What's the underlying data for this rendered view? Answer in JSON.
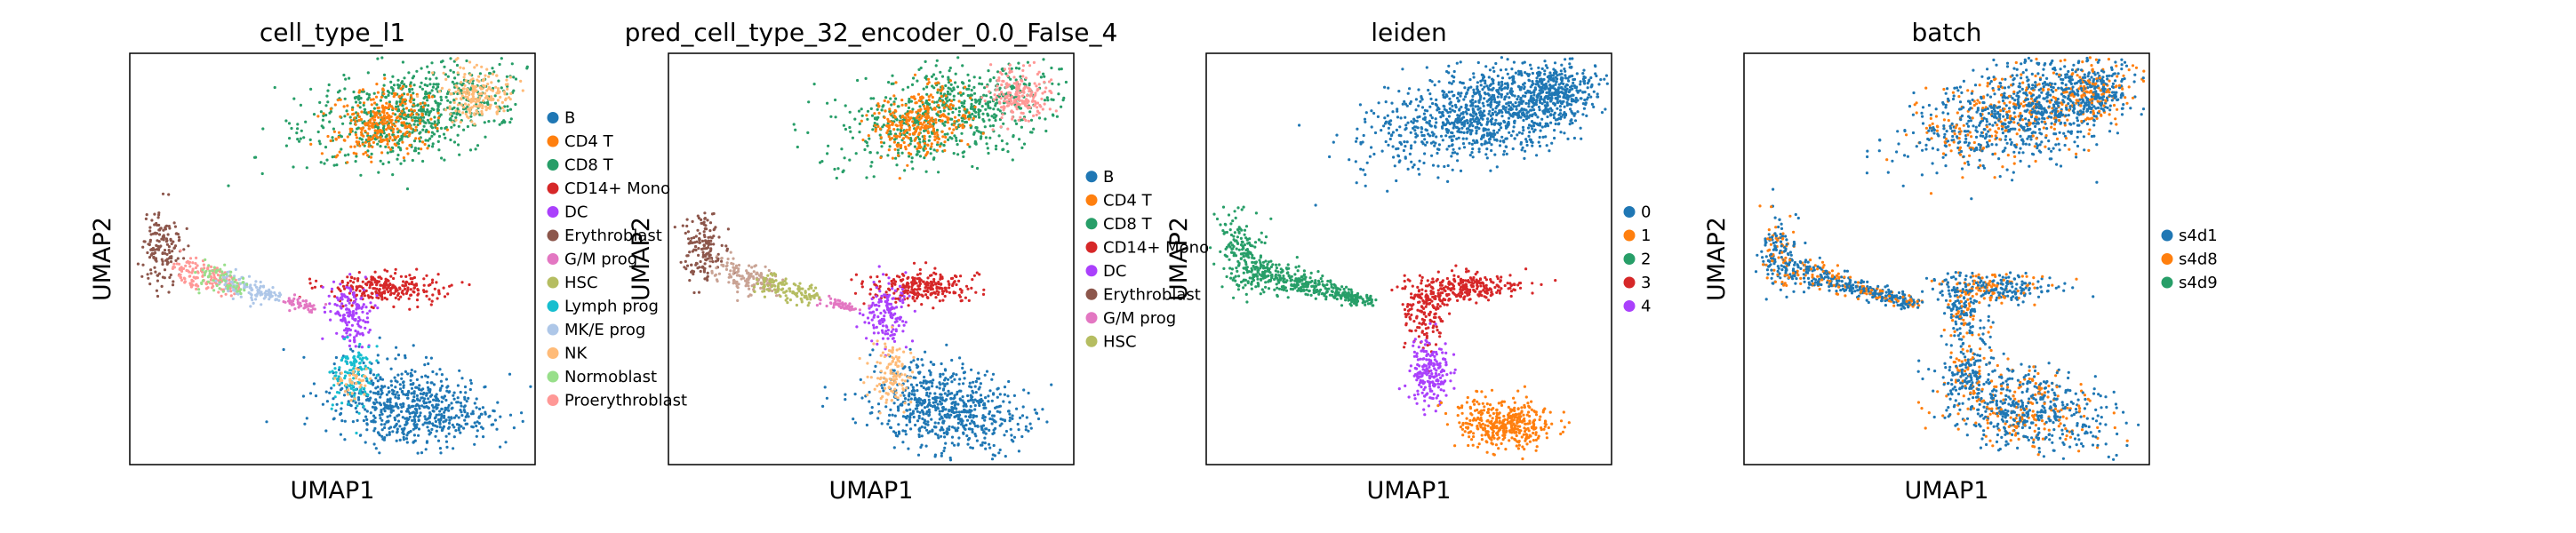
{
  "chart_data": [
    {
      "type": "scatter",
      "title": "cell_type_l1",
      "xlabel": "UMAP1",
      "ylabel": "UMAP2",
      "legend_position": "right",
      "series": [
        {
          "name": "B",
          "color": "#1f77b4"
        },
        {
          "name": "CD4 T",
          "color": "#ff7f0e"
        },
        {
          "name": "CD8 T",
          "color": "#279e68"
        },
        {
          "name": "CD14+ Mono",
          "color": "#d62728"
        },
        {
          "name": "DC",
          "color": "#aa40fc"
        },
        {
          "name": "Erythroblast",
          "color": "#8c564b"
        },
        {
          "name": "G/M prog",
          "color": "#e377c2"
        },
        {
          "name": "HSC",
          "color": "#b5bd61"
        },
        {
          "name": "Lymph prog",
          "color": "#17becf"
        },
        {
          "name": "MK/E prog",
          "color": "#aec7e8"
        },
        {
          "name": "NK",
          "color": "#ffbb78"
        },
        {
          "name": "Normoblast",
          "color": "#98df8a"
        },
        {
          "name": "Proerythroblast",
          "color": "#ff9896"
        }
      ]
    },
    {
      "type": "scatter",
      "title": "pred_cell_type_32_encoder_0.0_False_4",
      "xlabel": "UMAP1",
      "ylabel": "UMAP2",
      "legend_position": "right",
      "series": [
        {
          "name": "B",
          "color": "#1f77b4"
        },
        {
          "name": "CD4 T",
          "color": "#ff7f0e"
        },
        {
          "name": "CD8 T",
          "color": "#279e68"
        },
        {
          "name": "CD14+ Mono",
          "color": "#d62728"
        },
        {
          "name": "DC",
          "color": "#aa40fc"
        },
        {
          "name": "Erythroblast",
          "color": "#8c564b"
        },
        {
          "name": "G/M prog",
          "color": "#e377c2"
        },
        {
          "name": "HSC",
          "color": "#b5bd61"
        }
      ]
    },
    {
      "type": "scatter",
      "title": "leiden",
      "xlabel": "UMAP1",
      "ylabel": "UMAP2",
      "legend_position": "right",
      "series": [
        {
          "name": "0",
          "color": "#1f77b4"
        },
        {
          "name": "1",
          "color": "#ff7f0e"
        },
        {
          "name": "2",
          "color": "#279e68"
        },
        {
          "name": "3",
          "color": "#d62728"
        },
        {
          "name": "4",
          "color": "#aa40fc"
        }
      ]
    },
    {
      "type": "scatter",
      "title": "batch",
      "xlabel": "UMAP1",
      "ylabel": "UMAP2",
      "legend_position": "right",
      "series": [
        {
          "name": "s4d1",
          "color": "#1f77b4"
        },
        {
          "name": "s4d8",
          "color": "#ff7f0e"
        },
        {
          "name": "s4d9",
          "color": "#279e68"
        }
      ]
    }
  ]
}
